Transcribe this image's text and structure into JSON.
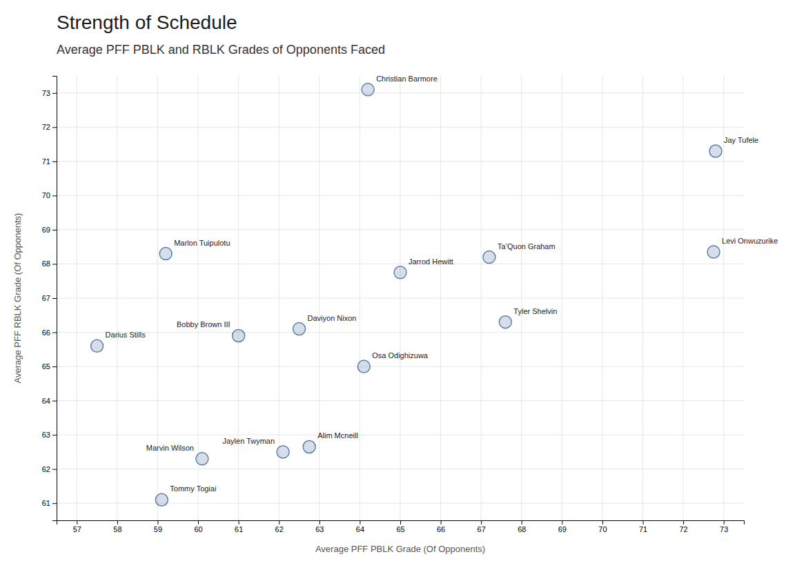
{
  "chart_data": {
    "type": "scatter",
    "title": "Strength of Schedule",
    "subtitle": "Average PFF PBLK and RBLK Grades of Opponents Faced",
    "xlabel": "Average PFF PBLK Grade (Of Opponents)",
    "ylabel": "Average PFF RBLK Grade (Of Opponents)",
    "x": [
      64.2,
      72.8,
      59.2,
      67.2,
      65.0,
      72.75,
      62.5,
      61.0,
      67.6,
      57.5,
      64.1,
      62.1,
      62.75,
      60.1,
      59.1
    ],
    "values": [
      73.1,
      71.3,
      68.3,
      68.2,
      67.75,
      68.35,
      66.1,
      65.9,
      66.3,
      65.6,
      65.0,
      62.5,
      62.65,
      62.3,
      61.1
    ],
    "annotations": [
      "Christian Barmore",
      "Jay Tufele",
      "Marlon Tuipulotu",
      "Ta’Quon Graham",
      "Jarrod Hewitt",
      "Levi Onwuzurike",
      "Daviyon Nixon",
      "Bobby Brown III",
      "Tyler Shelvin",
      "Darius Stills",
      "Osa Odighizuwa",
      "Jaylen Twyman",
      "Alim Mcneill",
      "Marvin Wilson",
      "Tommy Togiai"
    ],
    "xlim": [
      56.5,
      73.5
    ],
    "ylim": [
      60.5,
      73.5
    ],
    "xticks": [
      57,
      58,
      59,
      60,
      61,
      62,
      63,
      64,
      65,
      66,
      67,
      68,
      69,
      70,
      71,
      72,
      73
    ],
    "yticks": [
      61.0,
      62.0,
      63.0,
      64.0,
      65.0,
      66.0,
      67.0,
      68.0,
      69.0,
      70.0,
      71.0,
      72.0,
      73.0
    ],
    "grid": true,
    "color": "#5b7fa6"
  }
}
